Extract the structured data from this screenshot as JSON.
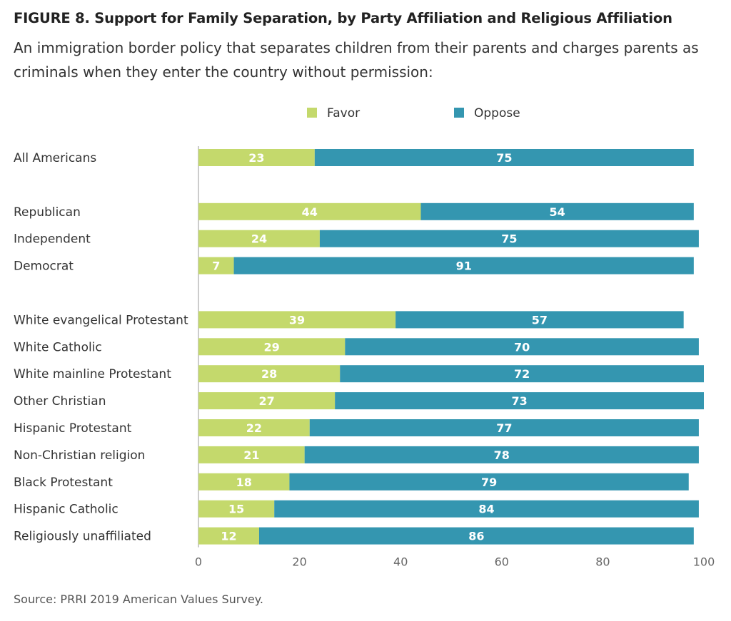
{
  "title": "FIGURE 8. Support for Family Separation, by Party Affiliation and Religious Affiliation",
  "subtitle": "An immigration border policy that separates children from their parents and charges parents as criminals when they enter the country without permission:",
  "source": "Source: PRRI 2019 American Values Survey.",
  "colors": {
    "favor": "#c4d96c",
    "oppose": "#3496b0",
    "axis": "#cccccc"
  },
  "chart_data": {
    "type": "bar",
    "orientation": "horizontal",
    "stacked": true,
    "categories": [
      "All Americans",
      "Republican",
      "Independent",
      "Democrat",
      "White evangelical Protestant",
      "White Catholic",
      "White mainline Protestant",
      "Other Christian",
      "Hispanic Protestant",
      "Non-Christian religion",
      "Black Protestant",
      "Hispanic Catholic",
      "Religiously unaffiliated"
    ],
    "groups": [
      [
        0
      ],
      [
        1,
        2,
        3
      ],
      [
        4,
        5,
        6,
        7,
        8,
        9,
        10,
        11,
        12
      ]
    ],
    "series": [
      {
        "name": "Favor",
        "values": [
          23,
          44,
          24,
          7,
          39,
          29,
          28,
          27,
          22,
          21,
          18,
          15,
          12
        ]
      },
      {
        "name": "Oppose",
        "values": [
          75,
          54,
          75,
          91,
          57,
          70,
          72,
          73,
          77,
          78,
          79,
          84,
          86
        ]
      }
    ],
    "xlim": [
      0,
      100
    ],
    "xticks": [
      0,
      20,
      40,
      60,
      80,
      100
    ],
    "legend_position": "top-center",
    "grid": false
  }
}
